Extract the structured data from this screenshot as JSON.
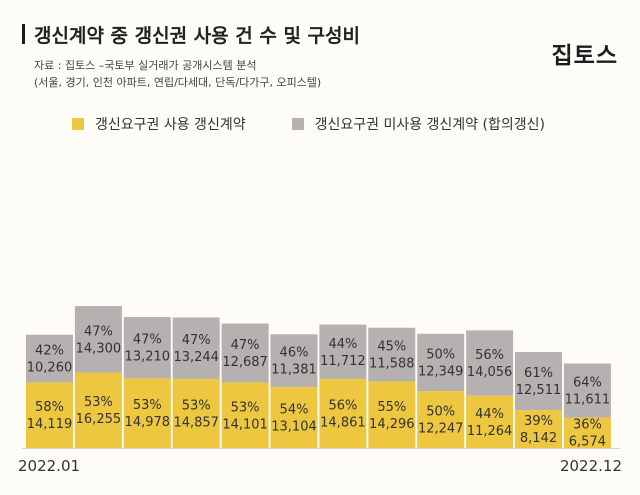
{
  "header": {
    "title": "갱신계약 중 갱신권 사용 건 수 및 구성비",
    "source_line1": "자료 : 집토스 –국토부 실거래가 공개시스템 분석",
    "source_line2": "(서울, 경기, 인천 아파트, 연립/다세대, 단독/다가구, 오피스텔)",
    "logo": "집토스"
  },
  "colors": {
    "background": "#fdfcf6",
    "used": "#ecc73f",
    "unused": "#b5b1b1",
    "label": "#333333"
  },
  "chart_data": {
    "type": "bar",
    "stacked": true,
    "title": "갱신계약 중 갱신권 사용 건 수 및 구성비",
    "xlabel": "",
    "ylabel": "",
    "x_start_label": "2022.01",
    "x_end_label": "2022.12",
    "legend_position": "top-left",
    "grid": false,
    "series": [
      {
        "name": "갱신요구권 사용 갱신계약",
        "values": [
          14119,
          16255,
          14978,
          14857,
          14101,
          13104,
          14861,
          14296,
          12247,
          11264,
          8142,
          6574
        ],
        "percent": [
          "58%",
          "53%",
          "53%",
          "53%",
          "53%",
          "54%",
          "56%",
          "55%",
          "50%",
          "44%",
          "39%",
          "36%"
        ]
      },
      {
        "name": "갱신요구권 미사용 갱신계약 (합의갱신)",
        "values": [
          10260,
          14300,
          13210,
          13244,
          12687,
          11381,
          11712,
          11588,
          12349,
          14056,
          12511,
          11611
        ],
        "percent": [
          "42%",
          "47%",
          "47%",
          "47%",
          "47%",
          "46%",
          "44%",
          "45%",
          "50%",
          "56%",
          "61%",
          "64%"
        ]
      }
    ],
    "value_labels": {
      "used": [
        "14,119",
        "16,255",
        "14,978",
        "14,857",
        "14,101",
        "13,104",
        "14,861",
        "14,296",
        "12,247",
        "11,264",
        "8,142",
        "6,574"
      ],
      "unused": [
        "10,260",
        "14,300",
        "13,210",
        "13,244",
        "12,687",
        "11,381",
        "11,712",
        "11,588",
        "12,349",
        "14,056",
        "12,511",
        "11,611"
      ]
    }
  }
}
